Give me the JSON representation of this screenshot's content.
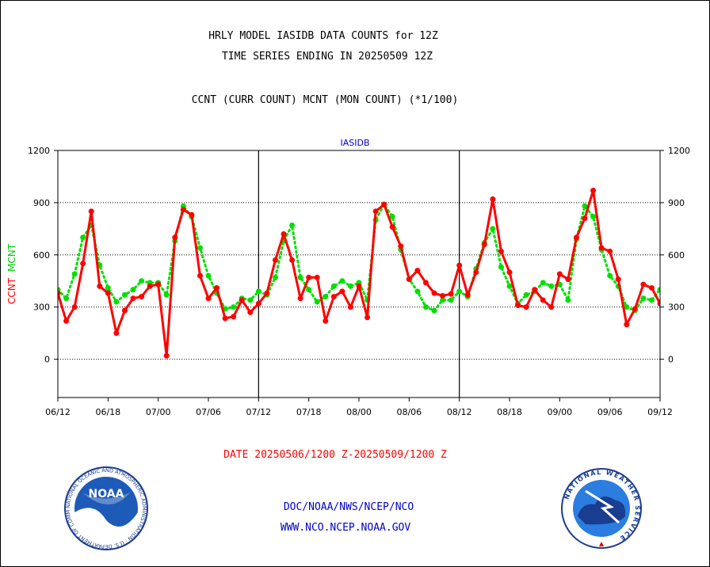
{
  "header": {
    "line1": "HRLY MODEL IASIDB DATA COUNTS for 12Z",
    "line2": "TIME SERIES ENDING IN 20250509 12Z",
    "line3": "CCNT (CURR COUNT) MCNT (MON COUNT) (*1/100)"
  },
  "footer": {
    "date_range": "DATE 20250506/1200 Z-20250509/1200 Z",
    "org_path": "DOC/NOAA/NWS/NCEP/NCO",
    "website": "WWW.NCO.NCEP.NOAA.GOV"
  },
  "logos": {
    "noaa": "NOAA",
    "noaa_ring": "NATIONAL OCEANIC AND ATMOSPHERIC ADMINISTRATION · U.S. DEPARTMENT OF COMMERCE",
    "nws_ring": "NATIONAL WEATHER SERVICE"
  },
  "chart_data": {
    "type": "line",
    "title": "IASIDB",
    "ylabel_left": [
      "CCNT",
      "MCNT"
    ],
    "ylim": [
      -220,
      1200
    ],
    "yticks": [
      0,
      300,
      600,
      900,
      1200
    ],
    "grid": "horizontal",
    "xlim": [
      0,
      72
    ],
    "xticks": [
      "06/12",
      "06/18",
      "07/00",
      "07/06",
      "07/12",
      "07/18",
      "08/00",
      "08/06",
      "08/12",
      "08/18",
      "09/00",
      "09/06",
      "09/12"
    ],
    "colors": {
      "CCNT": "#ff0000",
      "MCNT": "#00e000",
      "title": "#0000cc",
      "footer": "#ff0000",
      "links": "#0000cc"
    },
    "series": [
      {
        "name": "CCNT",
        "values": [
          380,
          220,
          300,
          550,
          850,
          420,
          380,
          150,
          280,
          350,
          360,
          420,
          430,
          20,
          700,
          860,
          830,
          480,
          350,
          410,
          235,
          245,
          340,
          270,
          320,
          380,
          570,
          720,
          570,
          350,
          470,
          470,
          220,
          360,
          390,
          300,
          420,
          240,
          850,
          890,
          760,
          650,
          460,
          510,
          440,
          380,
          365,
          375,
          540,
          370,
          500,
          660,
          920,
          620,
          500,
          310,
          300,
          400,
          340,
          300,
          490,
          460,
          700,
          810,
          970,
          640,
          620,
          460,
          200,
          290,
          430,
          410,
          320
        ]
      },
      {
        "name": "MCNT",
        "values": [
          400,
          350,
          490,
          700,
          770,
          540,
          410,
          330,
          370,
          400,
          450,
          440,
          440,
          370,
          680,
          880,
          820,
          640,
          480,
          380,
          290,
          300,
          350,
          340,
          390,
          370,
          470,
          680,
          770,
          470,
          400,
          330,
          360,
          420,
          450,
          420,
          440,
          340,
          800,
          890,
          820,
          630,
          460,
          390,
          300,
          280,
          340,
          340,
          390,
          360,
          520,
          670,
          750,
          530,
          420,
          320,
          370,
          390,
          440,
          420,
          430,
          340,
          690,
          880,
          820,
          630,
          480,
          420,
          300,
          280,
          350,
          340,
          400
        ]
      }
    ]
  }
}
